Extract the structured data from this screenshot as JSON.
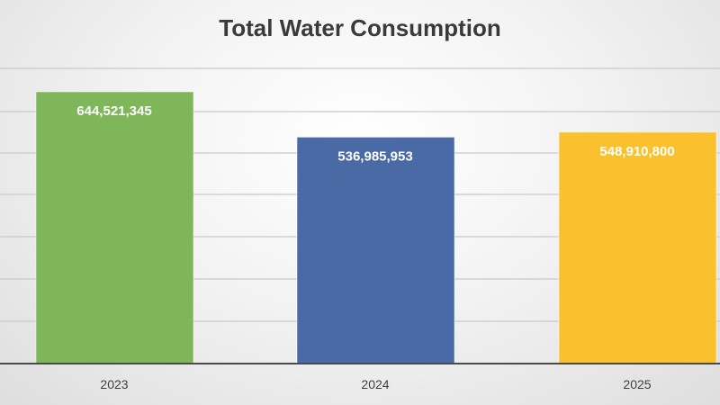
{
  "chart_data": {
    "type": "bar",
    "title": "Total Water Consumption",
    "categories": [
      "2023",
      "2024",
      "2025"
    ],
    "values": [
      644521345,
      536985953,
      548910800
    ],
    "data_labels": [
      "644,521,345",
      "536,985,953",
      "548,910,800"
    ],
    "colors": [
      "#7fb65a",
      "#4a6aa5",
      "#fbc02d"
    ],
    "ylim": [
      0,
      650000000
    ],
    "grid": true,
    "legend": "none"
  }
}
